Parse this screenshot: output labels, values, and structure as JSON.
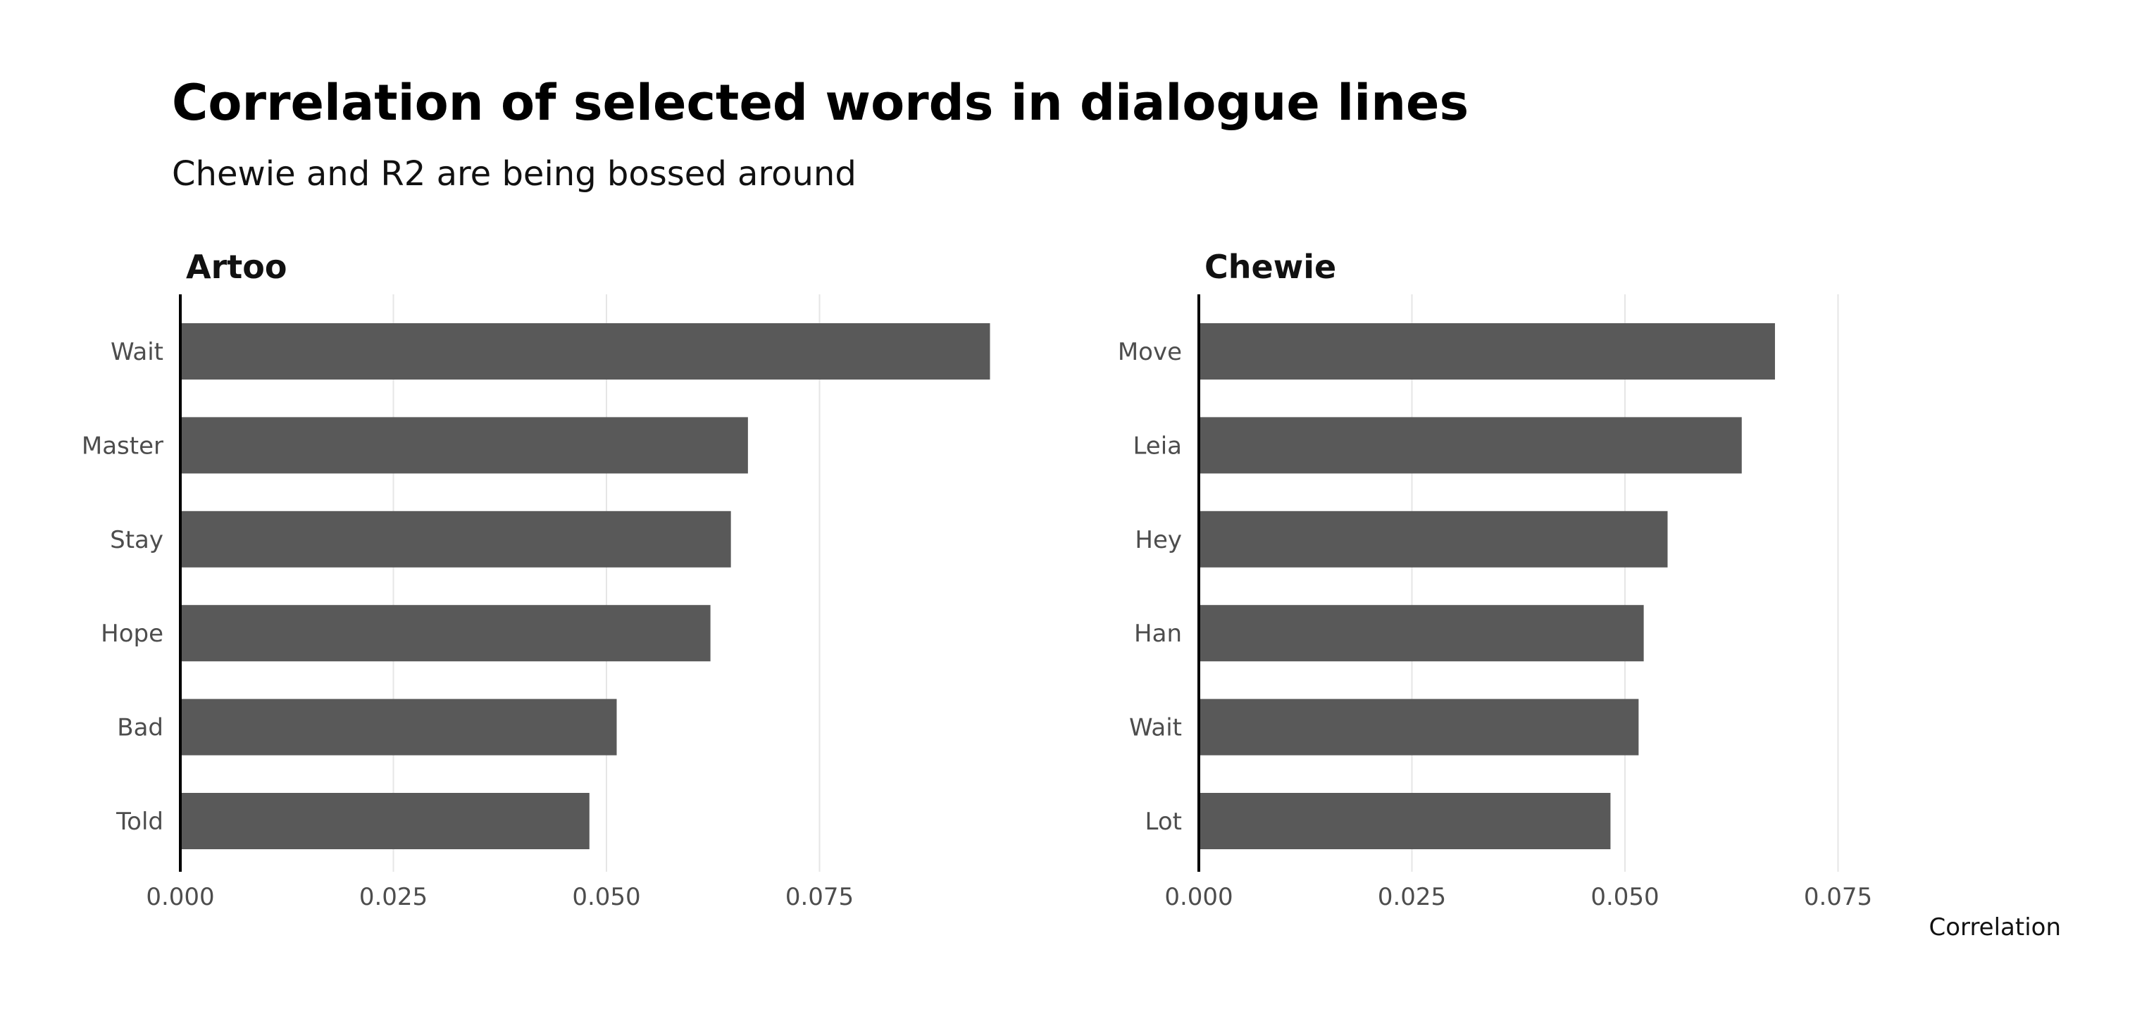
{
  "title": "Correlation of selected words in dialogue lines",
  "subtitle": "Chewie and R2 are being bossed around",
  "colors": {
    "bar": "#595959",
    "grid": "#e6e6e6",
    "axis": "#000000",
    "background": "#ffffff"
  },
  "chart_data": [
    {
      "type": "bar",
      "orientation": "horizontal",
      "facet": "Artoo",
      "categories": [
        "Wait",
        "Master",
        "Stay",
        "Hope",
        "Bad",
        "Told"
      ],
      "values": [
        0.095,
        0.0666,
        0.0646,
        0.0622,
        0.0512,
        0.048
      ],
      "xticks": [
        "0.000",
        "0.025",
        "0.050",
        "0.075"
      ],
      "xlim": [
        0,
        0.1
      ],
      "xlabel": "",
      "ylabel": "",
      "grid": "vertical"
    },
    {
      "type": "bar",
      "orientation": "horizontal",
      "facet": "Chewie",
      "categories": [
        "Move",
        "Leia",
        "Hey",
        "Han",
        "Wait",
        "Lot"
      ],
      "values": [
        0.0676,
        0.0637,
        0.055,
        0.0522,
        0.0516,
        0.0483
      ],
      "xticks": [
        "0.000",
        "0.025",
        "0.050",
        "0.075"
      ],
      "xlim": [
        0,
        0.1
      ],
      "xlabel": "Correlation",
      "ylabel": "",
      "grid": "vertical"
    }
  ]
}
